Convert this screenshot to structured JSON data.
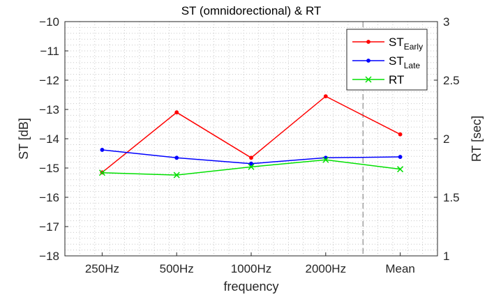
{
  "chart_data": {
    "type": "line",
    "title": "ST (omnidorectional) & RT",
    "xlabel": "frequency",
    "ylabel_left": "ST [dB]",
    "ylabel_right": "RT [sec]",
    "categories": [
      "250Hz",
      "500Hz",
      "1000Hz",
      "2000Hz",
      "Mean"
    ],
    "ylim_left": [
      -18,
      -10
    ],
    "yticks_left": [
      -10,
      -11,
      -12,
      -13,
      -14,
      -15,
      -16,
      -17,
      -18
    ],
    "ylim_right": [
      1,
      3
    ],
    "yticks_right": [
      3,
      2.5,
      2,
      1.5,
      1
    ],
    "grid": "minor dotted",
    "legend_position": "top-right",
    "separator_before": "Mean",
    "series": [
      {
        "name": "ST",
        "name_sub": "Early",
        "axis": "left",
        "color": "#ff0000",
        "marker": "dot",
        "values": [
          -15.15,
          -13.1,
          -14.65,
          -12.55,
          -13.85
        ]
      },
      {
        "name": "ST",
        "name_sub": "Late",
        "axis": "left",
        "color": "#0000ff",
        "marker": "dot",
        "values": [
          -14.38,
          -14.65,
          -14.85,
          -14.65,
          -14.62
        ]
      },
      {
        "name": "RT",
        "axis": "right",
        "color": "#00e000",
        "marker": "x",
        "values": [
          1.71,
          1.69,
          1.76,
          1.82,
          1.74
        ]
      }
    ]
  }
}
